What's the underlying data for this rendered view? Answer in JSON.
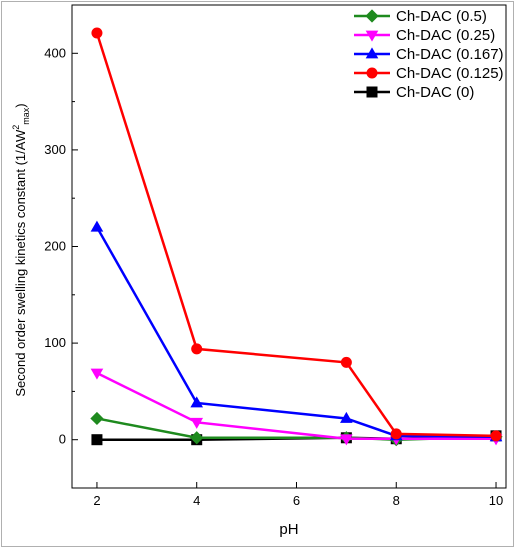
{
  "chart_data": {
    "type": "line",
    "xlabel": "pH",
    "ylabel": {
      "main": "Second order swelling kinetics constant (1/AW",
      "sup": "2",
      "sub": "max",
      "close": ")"
    },
    "xlim": [
      1.5,
      10.2
    ],
    "ylim": [
      -50,
      450
    ],
    "xticks": [
      2,
      4,
      6,
      8,
      10
    ],
    "yticks": [
      0,
      100,
      200,
      300,
      400
    ],
    "grid": false,
    "legend_position": "top-right",
    "x": [
      2,
      4,
      7,
      8,
      10
    ],
    "series": [
      {
        "name": "Ch-DAC (0.5)",
        "color": "#1e8a1e",
        "marker": "diamond",
        "values": [
          22,
          2,
          2,
          0,
          3
        ]
      },
      {
        "name": "Ch-DAC (0.25)",
        "color": "#ff00ff",
        "marker": "triangle-down",
        "values": [
          69,
          18,
          1,
          1,
          1
        ]
      },
      {
        "name": "Ch-DAC (0.167)",
        "color": "#0000ff",
        "marker": "triangle-up",
        "values": [
          220,
          38,
          22,
          4,
          3
        ]
      },
      {
        "name": "Ch-DAC (0.125)",
        "color": "#ff0000",
        "marker": "circle",
        "values": [
          421,
          94,
          80,
          6,
          4
        ]
      },
      {
        "name": "Ch-DAC (0)",
        "color": "#000000",
        "marker": "square",
        "values": [
          0,
          0,
          2,
          1,
          4
        ]
      }
    ]
  }
}
